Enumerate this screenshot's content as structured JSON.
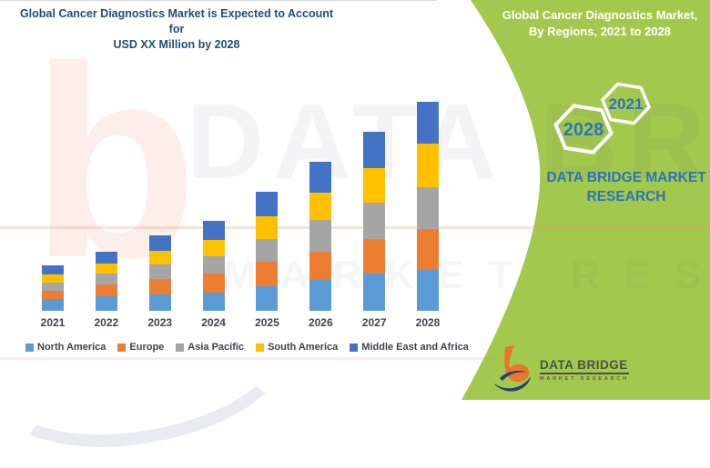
{
  "main_title": {
    "line1": "Global Cancer Diagnostics Market is Expected to Account for",
    "line2": "USD XX Million by 2028"
  },
  "panel": {
    "background_color": "#A3C84E",
    "header_line1": "Global Cancer Diagnostics Market,",
    "header_line2": "By Regions, 2021 to 2028",
    "hexagon_back_label": "2028",
    "hexagon_front_label": "2021",
    "brand_text": "DATA BRIDGE MARKET RESEARCH",
    "brand_color": "#2E74B5"
  },
  "footer_logo": {
    "name": "DATA BRIDGE",
    "subtitle": "MARKET RESEARCH",
    "mark_orange": "#E8762C",
    "mark_navy": "#24407A"
  },
  "watermark": {
    "row1": "DATA BRIDGE",
    "row2": "MARKET RESEARCH",
    "letter": "b"
  },
  "title_color": "#1F4E79",
  "chart_data": {
    "type": "bar",
    "stacked": true,
    "title": "Global Cancer Diagnostics Market is Expected to Account for USD XX Million by 2028",
    "categories": [
      "2021",
      "2022",
      "2023",
      "2024",
      "2025",
      "2026",
      "2027",
      "2028"
    ],
    "series": [
      {
        "name": "North America",
        "color": "#5B9BD5",
        "values": [
          13,
          16,
          18,
          20,
          27,
          34,
          41,
          45
        ]
      },
      {
        "name": "Europe",
        "color": "#ED7D31",
        "values": [
          9,
          13,
          17,
          21,
          27,
          31,
          38,
          45
        ]
      },
      {
        "name": "Asia Pacific",
        "color": "#A5A5A5",
        "values": [
          9,
          12,
          16,
          19,
          25,
          35,
          40,
          46
        ]
      },
      {
        "name": "South America",
        "color": "#FFC000",
        "values": [
          9,
          11,
          15,
          18,
          25,
          30,
          38,
          48
        ]
      },
      {
        "name": "Middle East and Africa",
        "color": "#4472C4",
        "values": [
          10,
          13,
          17,
          21,
          27,
          34,
          40,
          46
        ]
      }
    ],
    "stack_order": "bottom-to-top as listed",
    "totals": [
      50,
      65,
      83,
      99,
      131,
      164,
      197,
      230
    ],
    "units": "relative height (actual values shown as USD XX Million, no value axis displayed)",
    "xlabel": "",
    "ylabel": "",
    "grid": false,
    "value_axis_visible": false,
    "legend_position": "bottom"
  }
}
